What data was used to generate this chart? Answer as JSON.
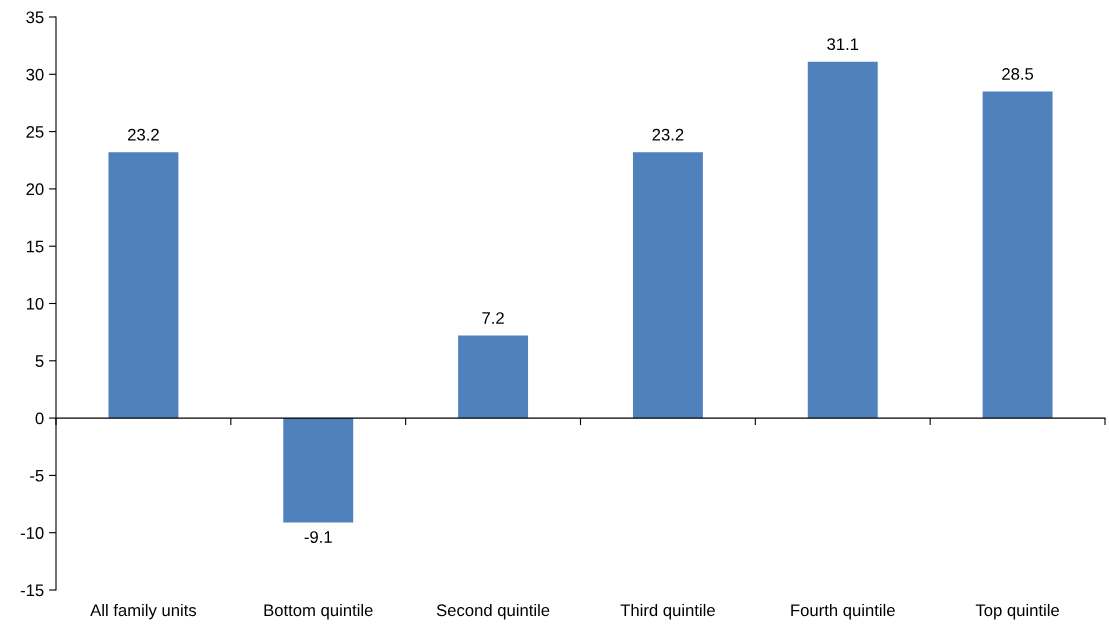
{
  "chart_data": {
    "type": "bar",
    "categories": [
      "All family units",
      "Bottom quintile",
      "Second quintile",
      "Third quintile",
      "Fourth quintile",
      "Top quintile"
    ],
    "values": [
      23.2,
      -9.1,
      7.2,
      23.2,
      31.1,
      28.5
    ],
    "color": "#4f81bd",
    "ylim": [
      -15,
      35
    ],
    "yticks": [
      -15,
      -10,
      -5,
      0,
      5,
      10,
      15,
      20,
      25,
      30,
      35
    ],
    "data_labels": true,
    "legend": false
  }
}
